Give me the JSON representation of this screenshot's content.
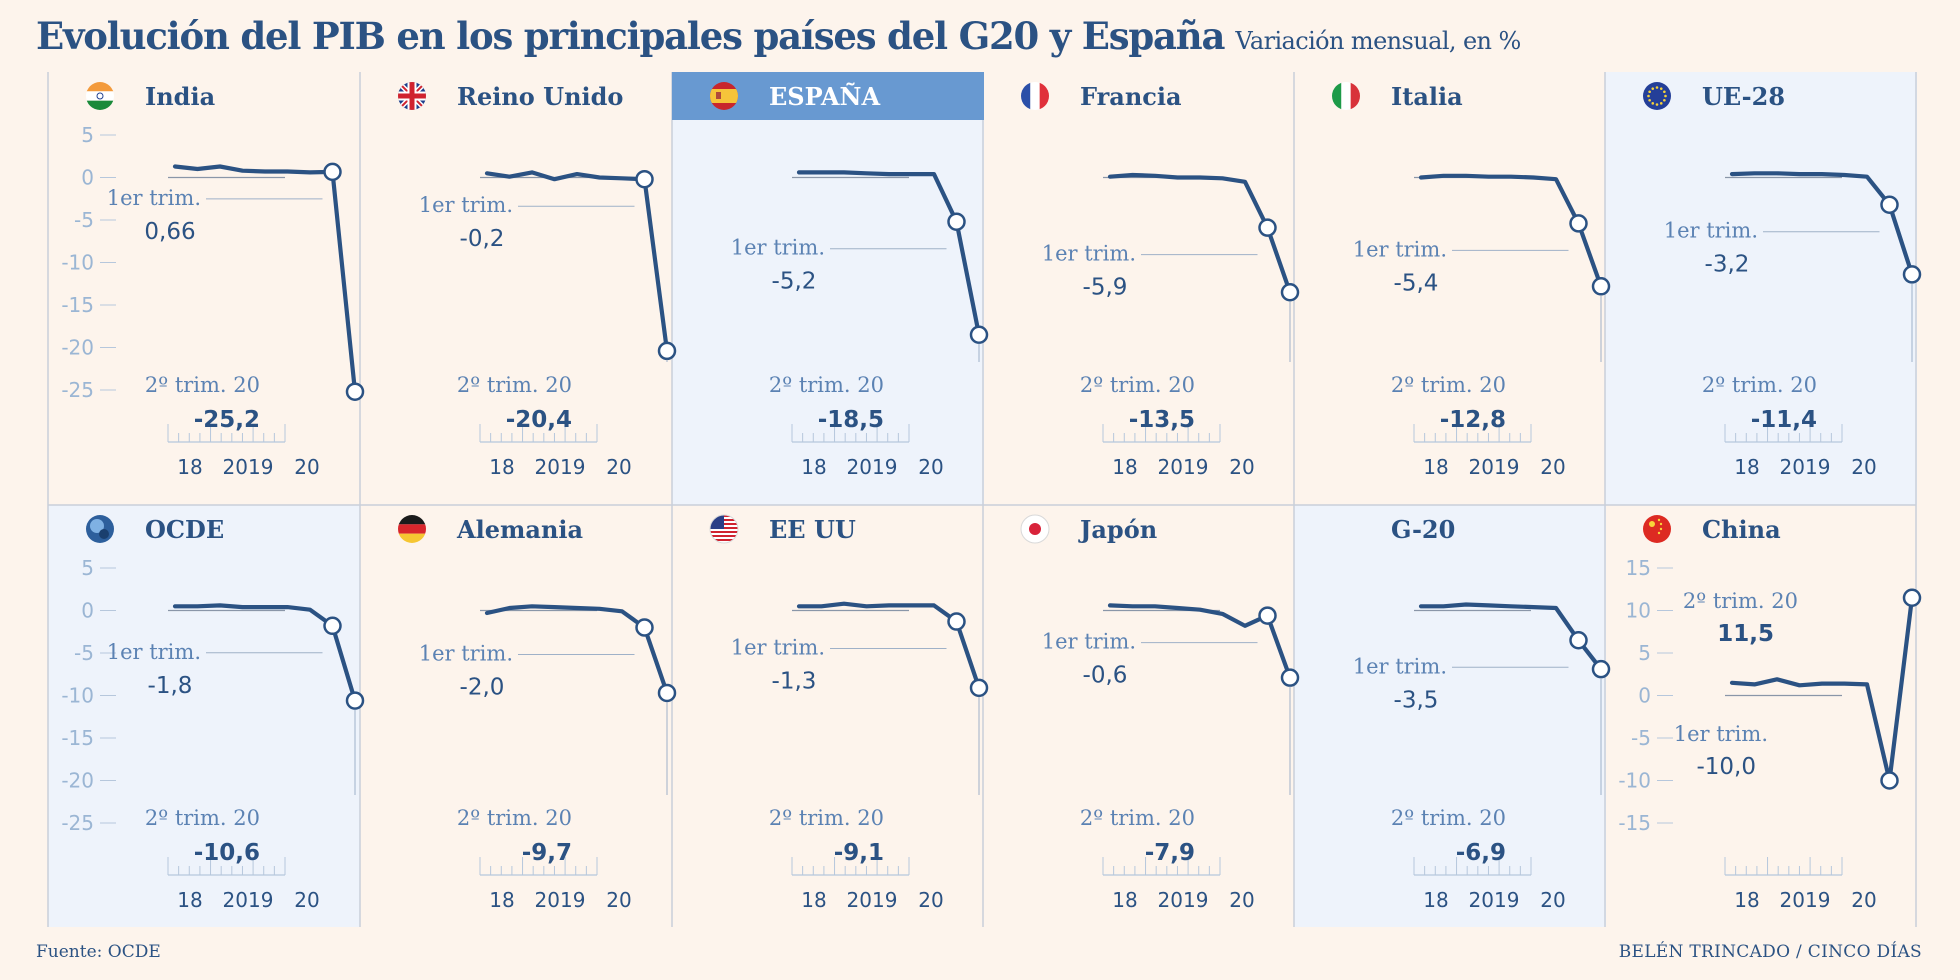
{
  "header": {
    "title": "Evolución del PIB en los principales países del G20 y España",
    "subtitle": "Variación mensual, en %"
  },
  "footer": {
    "source": "Fuente: OCDE",
    "credit": "BELÉN TRINCADO / CINCO DÍAS"
  },
  "colors": {
    "background": "#fdf4ec",
    "panel_highlight": "#eef3fb",
    "title_bar_spain": "#6899d1",
    "line": "#2b5283",
    "axis_labels": "#9bb6d4",
    "annotation_label": "#5b82b3"
  },
  "chart_data": [
    {
      "type": "line",
      "country": "India",
      "flag": "india-flag-icon",
      "x_ticks": [
        "18",
        "2019",
        "20"
      ],
      "y_ticks": [
        "5",
        "0",
        "-5",
        "-10",
        "-15",
        "-20",
        "-25"
      ],
      "ylim": [
        -25,
        5
      ],
      "values": [
        1.3,
        1.0,
        1.3,
        0.8,
        0.7,
        0.7,
        0.6,
        0.66,
        -25.2
      ],
      "ann_q1": {
        "label": "1er trim.",
        "value": "0,66"
      },
      "ann_q2": {
        "label": "2º trim. 20",
        "value": "-25,2"
      }
    },
    {
      "type": "line",
      "country": "Reino Unido",
      "flag": "uk-flag-icon",
      "x_ticks": [
        "18",
        "2019",
        "20"
      ],
      "ylim": [
        -25,
        5
      ],
      "values": [
        0.5,
        0.1,
        0.6,
        -0.2,
        0.4,
        0.0,
        -0.1,
        -0.2,
        -20.4
      ],
      "ann_q1": {
        "label": "1er trim.",
        "value": "-0,2"
      },
      "ann_q2": {
        "label": "2º trim. 20",
        "value": "-20,4"
      }
    },
    {
      "type": "line",
      "country": "ESPAÑA",
      "flag": "spain-flag-icon",
      "x_ticks": [
        "18",
        "2019",
        "20"
      ],
      "ylim": [
        -25,
        5
      ],
      "values": [
        0.6,
        0.6,
        0.6,
        0.5,
        0.4,
        0.4,
        0.4,
        -5.2,
        -18.5
      ],
      "ann_q1": {
        "label": "1er trim.",
        "value": "-5,2"
      },
      "ann_q2": {
        "label": "2º trim. 20",
        "value": "-18,5"
      }
    },
    {
      "type": "line",
      "country": "Francia",
      "flag": "france-flag-icon",
      "x_ticks": [
        "18",
        "2019",
        "20"
      ],
      "ylim": [
        -25,
        5
      ],
      "values": [
        0.1,
        0.3,
        0.2,
        0.0,
        0.0,
        -0.1,
        -0.5,
        -5.9,
        -13.5
      ],
      "ann_q1": {
        "label": "1er trim.",
        "value": "-5,9"
      },
      "ann_q2": {
        "label": "2º trim. 20",
        "value": "-13,5"
      }
    },
    {
      "type": "line",
      "country": "Italia",
      "flag": "italy-flag-icon",
      "x_ticks": [
        "18",
        "2019",
        "20"
      ],
      "ylim": [
        -25,
        5
      ],
      "values": [
        0.0,
        0.2,
        0.2,
        0.1,
        0.1,
        0.0,
        -0.2,
        -5.4,
        -12.8
      ],
      "ann_q1": {
        "label": "1er trim.",
        "value": "-5,4"
      },
      "ann_q2": {
        "label": "2º trim. 20",
        "value": "-12,8"
      }
    },
    {
      "type": "line",
      "country": "UE-28",
      "flag": "eu-flag-icon",
      "x_ticks": [
        "18",
        "2019",
        "20"
      ],
      "ylim": [
        -25,
        5
      ],
      "values": [
        0.4,
        0.5,
        0.5,
        0.4,
        0.4,
        0.3,
        0.1,
        -3.2,
        -11.4
      ],
      "ann_q1": {
        "label": "1er trim.",
        "value": "-3,2"
      },
      "ann_q2": {
        "label": "2º trim. 20",
        "value": "-11,4"
      }
    },
    {
      "type": "line",
      "country": "OCDE",
      "flag": "oecd-logo-icon",
      "x_ticks": [
        "18",
        "2019",
        "20"
      ],
      "y_ticks": [
        "5",
        "0",
        "-5",
        "-10",
        "-15",
        "-20",
        "-25"
      ],
      "ylim": [
        -25,
        5
      ],
      "values": [
        0.5,
        0.5,
        0.6,
        0.4,
        0.4,
        0.4,
        0.1,
        -1.8,
        -10.6
      ],
      "ann_q1": {
        "label": "1er trim.",
        "value": "-1,8"
      },
      "ann_q2": {
        "label": "2º trim. 20",
        "value": "-10,6"
      }
    },
    {
      "type": "line",
      "country": "Alemania",
      "flag": "germany-flag-icon",
      "x_ticks": [
        "18",
        "2019",
        "20"
      ],
      "ylim": [
        -25,
        5
      ],
      "values": [
        -0.3,
        0.3,
        0.5,
        0.4,
        0.3,
        0.2,
        -0.1,
        -2.0,
        -9.7
      ],
      "ann_q1": {
        "label": "1er trim.",
        "value": "-2,0"
      },
      "ann_q2": {
        "label": "2º trim. 20",
        "value": "-9,7"
      }
    },
    {
      "type": "line",
      "country": "EE UU",
      "flag": "usa-flag-icon",
      "x_ticks": [
        "18",
        "2019",
        "20"
      ],
      "ylim": [
        -25,
        5
      ],
      "values": [
        0.5,
        0.5,
        0.8,
        0.5,
        0.6,
        0.6,
        0.6,
        -1.3,
        -9.1
      ],
      "ann_q1": {
        "label": "1er trim.",
        "value": "-1,3"
      },
      "ann_q2": {
        "label": "2º trim. 20",
        "value": "-9,1"
      }
    },
    {
      "type": "line",
      "country": "Japón",
      "flag": "japan-flag-icon",
      "x_ticks": [
        "18",
        "2019",
        "20"
      ],
      "ylim": [
        -25,
        5
      ],
      "values": [
        0.6,
        0.5,
        0.5,
        0.3,
        0.1,
        -0.4,
        -1.8,
        -0.6,
        -7.9
      ],
      "ann_q1": {
        "label": "1er trim.",
        "value": "-0,6"
      },
      "ann_q2": {
        "label": "2º trim. 20",
        "value": "-7,9"
      }
    },
    {
      "type": "line",
      "country": "G-20",
      "flag": "",
      "x_ticks": [
        "18",
        "2019",
        "20"
      ],
      "ylim": [
        -25,
        5
      ],
      "values": [
        0.5,
        0.5,
        0.7,
        0.6,
        0.5,
        0.4,
        0.3,
        -3.5,
        -6.9
      ],
      "ann_q1": {
        "label": "1er trim.",
        "value": "-3,5"
      },
      "ann_q2": {
        "label": "2º trim. 20",
        "value": "-6,9"
      }
    },
    {
      "type": "line",
      "country": "China",
      "flag": "china-flag-icon",
      "x_ticks": [
        "18",
        "2019",
        "20"
      ],
      "y_ticks": [
        "15",
        "10",
        "5",
        "0",
        "-5",
        "-10",
        "-15"
      ],
      "ylim": [
        -15,
        15
      ],
      "values": [
        1.5,
        1.3,
        1.9,
        1.2,
        1.4,
        1.4,
        1.3,
        -10.0,
        11.5
      ],
      "ann_q1": {
        "label": "1er trim.",
        "value": "-10,0"
      },
      "ann_q2": {
        "label": "2º trim. 20",
        "value": "11,5"
      }
    }
  ]
}
